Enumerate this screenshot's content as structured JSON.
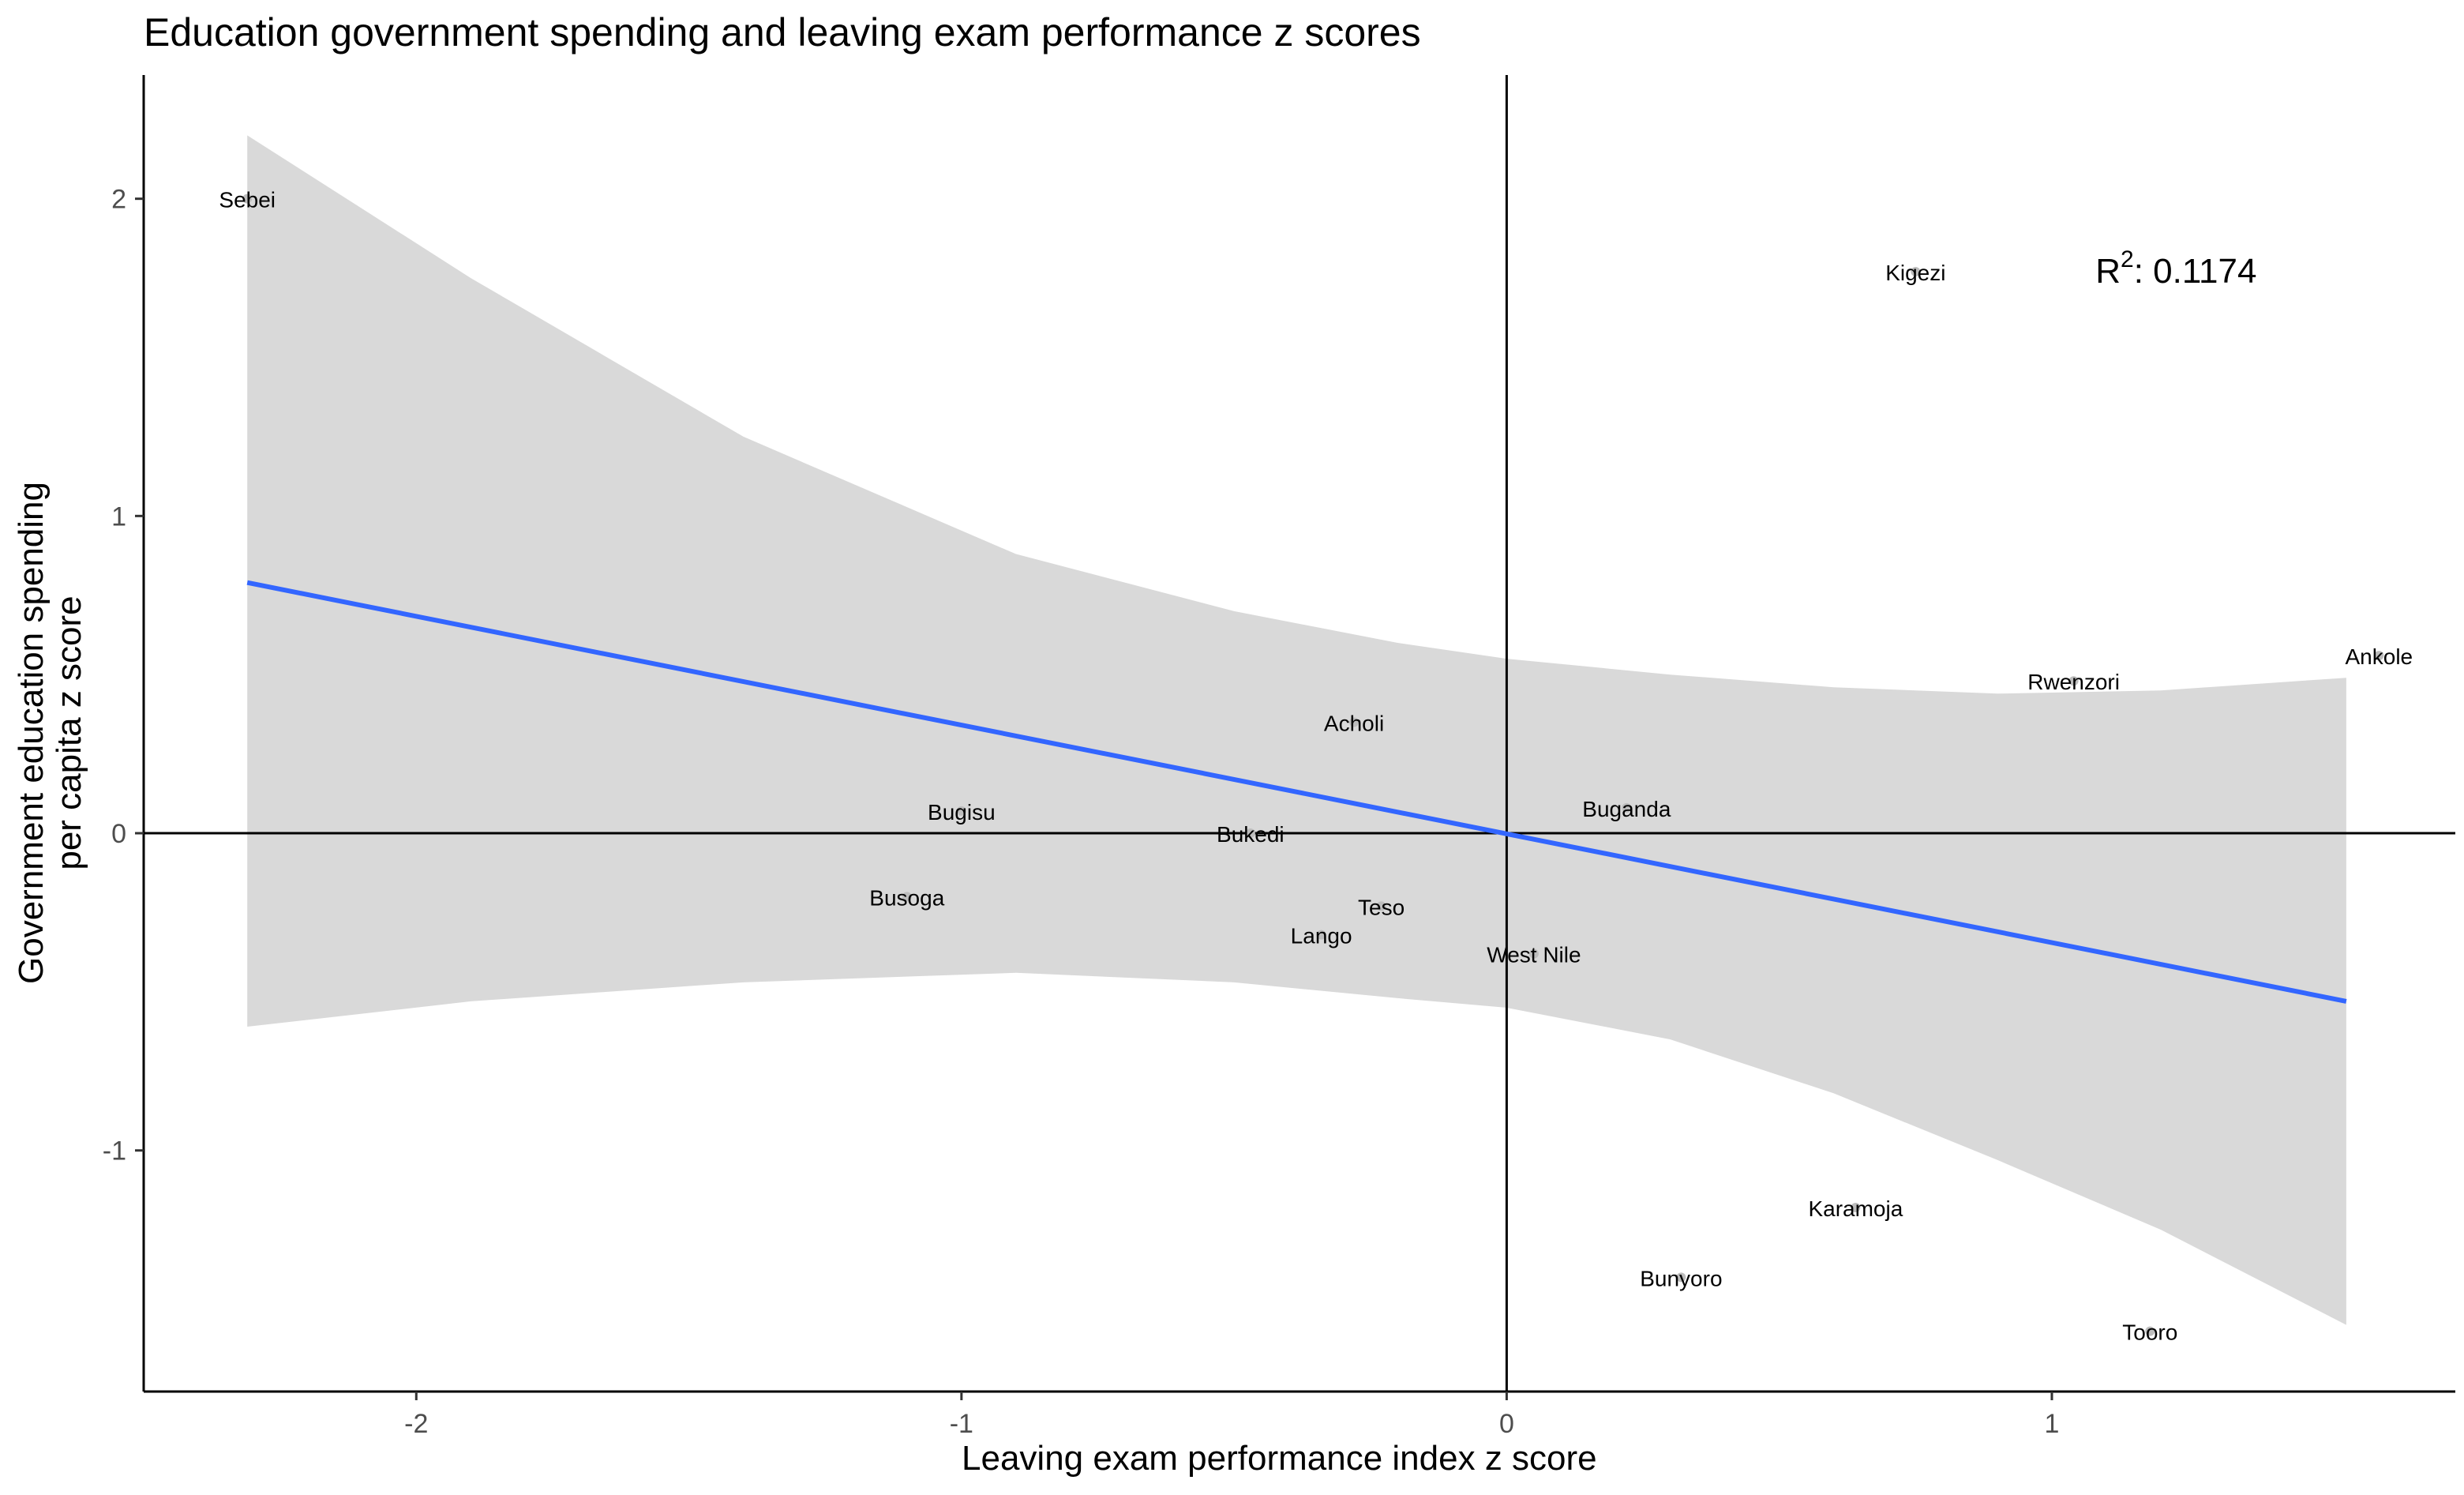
{
  "chart_data": {
    "type": "scatter",
    "title": "Education government spending and leaving exam performance  z scores",
    "xlabel": "Leaving exam performance index z score",
    "ylabel_lines": [
      "Government education spending",
      "per capita z score"
    ],
    "xlim": [
      -2.5,
      1.74
    ],
    "ylim": [
      -1.76,
      2.39
    ],
    "x_ticks": [
      -2,
      -1,
      0,
      1
    ],
    "y_ticks": [
      -1,
      0,
      1,
      2
    ],
    "grid": false,
    "reference_lines": {
      "x": 0,
      "y": 0
    },
    "points": [
      {
        "label": "Sebei",
        "x": -2.31,
        "y": 2.0
      },
      {
        "label": "Kigezi",
        "x": 0.75,
        "y": 1.77
      },
      {
        "label": "Ankole",
        "x": 1.6,
        "y": 0.56
      },
      {
        "label": "Rwenzori",
        "x": 1.04,
        "y": 0.48
      },
      {
        "label": "Acholi",
        "x": -0.28,
        "y": 0.35
      },
      {
        "label": "Bugisu",
        "x": -1.0,
        "y": 0.07
      },
      {
        "label": "Buganda",
        "x": 0.22,
        "y": 0.08
      },
      {
        "label": "Bukedi",
        "x": -0.47,
        "y": 0.0
      },
      {
        "label": "Busoga",
        "x": -1.1,
        "y": -0.2
      },
      {
        "label": "Teso",
        "x": -0.23,
        "y": -0.23
      },
      {
        "label": "Lango",
        "x": -0.34,
        "y": -0.32
      },
      {
        "label": "West Nile",
        "x": 0.05,
        "y": -0.38
      },
      {
        "label": "Karamoja",
        "x": 0.64,
        "y": -1.18
      },
      {
        "label": "Bunyoro",
        "x": 0.32,
        "y": -1.4
      },
      {
        "label": "Tooro",
        "x": 1.18,
        "y": -1.57
      }
    ],
    "fit": {
      "type": "linear",
      "x": [
        -2.31,
        1.54
      ],
      "y": [
        0.79,
        -0.53
      ],
      "color": "#3366FF",
      "ci_upper": [
        [
          -2.31,
          2.2
        ],
        [
          -1.9,
          1.75
        ],
        [
          -1.4,
          1.25
        ],
        [
          -0.9,
          0.88
        ],
        [
          -0.5,
          0.7
        ],
        [
          -0.2,
          0.6
        ],
        [
          0.0,
          0.55
        ],
        [
          0.3,
          0.5
        ],
        [
          0.6,
          0.46
        ],
        [
          0.9,
          0.44
        ],
        [
          1.2,
          0.45
        ],
        [
          1.54,
          0.49
        ]
      ],
      "ci_lower": [
        [
          -2.31,
          -0.61
        ],
        [
          -1.9,
          -0.53
        ],
        [
          -1.4,
          -0.47
        ],
        [
          -0.9,
          -0.44
        ],
        [
          -0.5,
          -0.47
        ],
        [
          -0.2,
          -0.52
        ],
        [
          0.0,
          -0.55
        ],
        [
          0.3,
          -0.65
        ],
        [
          0.6,
          -0.82
        ],
        [
          0.9,
          -1.03
        ],
        [
          1.2,
          -1.25
        ],
        [
          1.54,
          -1.55
        ]
      ],
      "ci_color": "#D9D9D9"
    },
    "annotation": {
      "label": "R",
      "superscript": "2",
      "text": ": 0.1174",
      "x": 1.08,
      "y": 1.78
    }
  }
}
